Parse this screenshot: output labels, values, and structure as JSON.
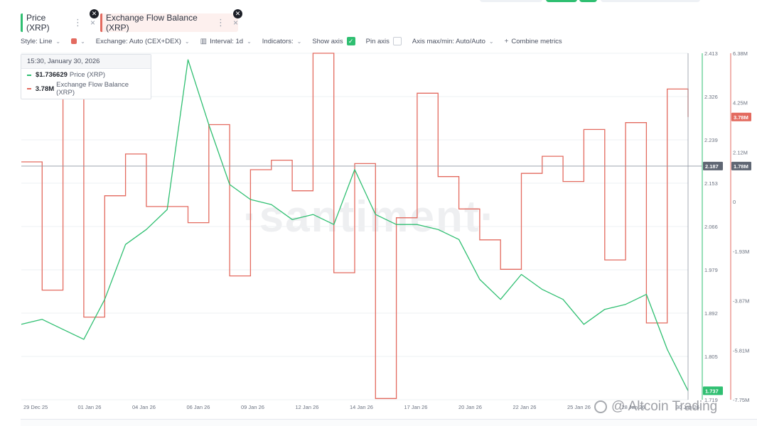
{
  "tabs": [
    {
      "label": "Price (XRP)",
      "color": "#2fbf71"
    },
    {
      "label": "Exchange Flow Balance (XRP)",
      "color": "#e36a5f"
    }
  ],
  "toolbar": {
    "style": "Style: Line",
    "exchange": "Exchange: Auto (CEX+DEX)",
    "interval": "Interval: 1d",
    "indicators": "Indicators:",
    "show_axis": "Show axis",
    "pin_axis": "Pin axis",
    "axis_minmax": "Axis max/min: Auto/Auto",
    "combine": "Combine metrics"
  },
  "tooltip": {
    "datetime": "15:30, January 30, 2026",
    "price_value": "$1.736629",
    "price_name": "Price (XRP)",
    "flow_value": "3.78M",
    "flow_name": "Exchange Flow Balance (XRP)"
  },
  "watermark": "·santiment·",
  "credit": "@ Altcoin Trading",
  "chart_data": {
    "type": "line",
    "x_ticks": [
      "29 Dec 25",
      "01 Jan 26",
      "04 Jan 26",
      "06 Jan 26",
      "09 Jan 26",
      "12 Jan 26",
      "14 Jan 26",
      "17 Jan 26",
      "20 Jan 26",
      "22 Jan 26",
      "25 Jan 26",
      "28 Jan 26",
      "30 Jan 26"
    ],
    "price_axis": {
      "ticks": [
        "2.413",
        "2.326",
        "2.239",
        "2.153",
        "2.066",
        "1.979",
        "1.892",
        "1.805",
        "1.719"
      ],
      "min": 1.719,
      "max": 2.413,
      "color": "#2fbf71"
    },
    "flow_axis": {
      "ticks": [
        "6.38M",
        "4.25M",
        "2.12M",
        "0",
        "-1.93M",
        "-3.87M",
        "-5.81M",
        "-7.75M"
      ],
      "min": -7.75,
      "max": 6.38,
      "unit": "M",
      "color": "#e36a5f"
    },
    "crosshair": {
      "price_label": "2.187",
      "flow_label": "1.78M"
    },
    "last_labels": {
      "price": "1.737",
      "flow": "3.78M"
    },
    "series": [
      {
        "name": "Exchange Flow Balance (XRP)",
        "color": "#e36a5f",
        "step": true,
        "x": [
          "2025-12-29",
          "2025-12-30",
          "2025-12-31",
          "2026-01-01",
          "2026-01-02",
          "2026-01-03",
          "2026-01-04",
          "2026-01-05",
          "2026-01-06",
          "2026-01-07",
          "2026-01-08",
          "2026-01-09",
          "2026-01-10",
          "2026-01-11",
          "2026-01-12",
          "2026-01-13",
          "2026-01-14",
          "2026-01-15",
          "2026-01-16",
          "2026-01-17",
          "2026-01-18",
          "2026-01-19",
          "2026-01-20",
          "2026-01-21",
          "2026-01-22",
          "2026-01-23",
          "2026-01-24",
          "2026-01-25",
          "2026-01-26",
          "2026-01-27",
          "2026-01-28",
          "2026-01-29",
          "2026-01-30"
        ],
        "values": [
          1.95,
          -3.28,
          6.3,
          -4.38,
          0.57,
          2.27,
          0.13,
          0.13,
          -0.53,
          3.47,
          -2.7,
          1.63,
          2.02,
          0.77,
          6.38,
          -2.57,
          1.88,
          -7.7,
          -0.33,
          4.75,
          1.35,
          0.03,
          -1.23,
          -2.43,
          1.48,
          2.18,
          1.15,
          3.27,
          -2.05,
          3.55,
          -4.62,
          4.92,
          3.78
        ]
      },
      {
        "name": "Price (XRP)",
        "color": "#2fbf71",
        "x": [
          "2025-12-29",
          "2025-12-30",
          "2025-12-31",
          "2026-01-01",
          "2026-01-02",
          "2026-01-03",
          "2026-01-04",
          "2026-01-05",
          "2026-01-06",
          "2026-01-07",
          "2026-01-08",
          "2026-01-09",
          "2026-01-10",
          "2026-01-11",
          "2026-01-12",
          "2026-01-13",
          "2026-01-14",
          "2026-01-15",
          "2026-01-16",
          "2026-01-17",
          "2026-01-18",
          "2026-01-19",
          "2026-01-20",
          "2026-01-21",
          "2026-01-22",
          "2026-01-23",
          "2026-01-24",
          "2026-01-25",
          "2026-01-26",
          "2026-01-27",
          "2026-01-28",
          "2026-01-29",
          "2026-01-30"
        ],
        "values": [
          1.87,
          1.88,
          1.86,
          1.84,
          1.92,
          2.03,
          2.06,
          2.1,
          2.4,
          2.27,
          2.15,
          2.12,
          2.11,
          2.08,
          2.09,
          2.07,
          2.18,
          2.09,
          2.07,
          2.07,
          2.06,
          2.04,
          1.96,
          1.92,
          1.97,
          1.94,
          1.92,
          1.87,
          1.9,
          1.91,
          1.93,
          1.82,
          1.737
        ]
      }
    ]
  }
}
